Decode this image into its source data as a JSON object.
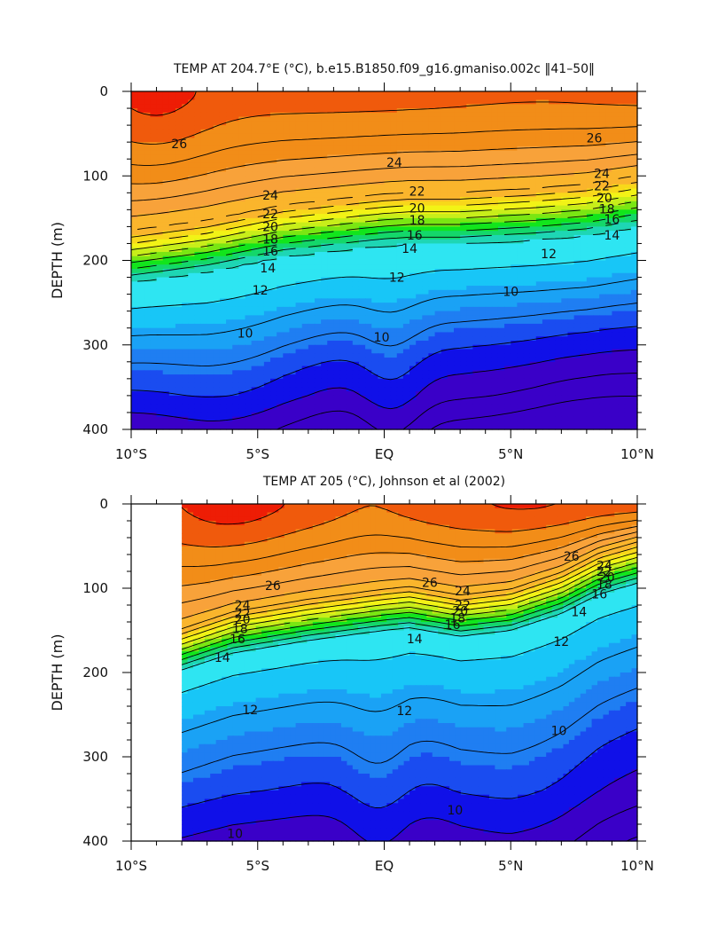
{
  "chart_data": [
    {
      "type": "contour",
      "title": "TEMP AT 204.7°E (°C), b.e15.B1850.f09_g16.gmaniso.002c ‖41–50‖",
      "xlabel": "",
      "ylabel": "DEPTH (m)",
      "xticks": [
        "10°S",
        "5°S",
        "EQ",
        "5°N",
        "10°N"
      ],
      "x_values": [
        -10,
        -5,
        0,
        5,
        10
      ],
      "xlim": [
        -10,
        10
      ],
      "yticks": [
        "0",
        "100",
        "200",
        "300",
        "400"
      ],
      "ylim": [
        0,
        400
      ],
      "y_inverted": true,
      "data_xlim": [
        -10,
        10
      ],
      "contour_interval": 1,
      "contour_labels": [
        {
          "text": "26",
          "x": -8.1,
          "y": 62
        },
        {
          "text": "26",
          "x": 8.3,
          "y": 55
        },
        {
          "text": "24",
          "x": 0.4,
          "y": 84
        },
        {
          "text": "24",
          "x": 8.6,
          "y": 97
        },
        {
          "text": "24",
          "x": -4.5,
          "y": 123
        },
        {
          "text": "22",
          "x": 8.6,
          "y": 112
        },
        {
          "text": "22",
          "x": 1.3,
          "y": 118
        },
        {
          "text": "22",
          "x": -4.5,
          "y": 145
        },
        {
          "text": "20",
          "x": 8.7,
          "y": 126
        },
        {
          "text": "20",
          "x": 1.3,
          "y": 138
        },
        {
          "text": "20",
          "x": -4.5,
          "y": 160
        },
        {
          "text": "18",
          "x": 8.8,
          "y": 139
        },
        {
          "text": "18",
          "x": 1.3,
          "y": 152
        },
        {
          "text": "18",
          "x": -4.5,
          "y": 175
        },
        {
          "text": "16",
          "x": 9.0,
          "y": 151
        },
        {
          "text": "16",
          "x": 1.2,
          "y": 170
        },
        {
          "text": "16",
          "x": -4.5,
          "y": 189
        },
        {
          "text": "14",
          "x": 9.0,
          "y": 170
        },
        {
          "text": "14",
          "x": 1.0,
          "y": 186
        },
        {
          "text": "14",
          "x": -4.6,
          "y": 209
        },
        {
          "text": "12",
          "x": 6.5,
          "y": 192
        },
        {
          "text": "12",
          "x": 0.5,
          "y": 220
        },
        {
          "text": "12",
          "x": -4.9,
          "y": 235
        },
        {
          "text": "10",
          "x": 5.0,
          "y": 237
        },
        {
          "text": "10",
          "x": -0.1,
          "y": 291
        },
        {
          "text": "10",
          "x": -5.5,
          "y": 286
        }
      ]
    },
    {
      "type": "contour",
      "title": "TEMP AT 205 (°C), Johnson et al (2002)",
      "xlabel": "",
      "ylabel": "DEPTH (m)",
      "xticks": [
        "10°S",
        "5°S",
        "EQ",
        "5°N",
        "10°N"
      ],
      "x_values": [
        -10,
        -5,
        0,
        5,
        10
      ],
      "xlim": [
        -10,
        10
      ],
      "yticks": [
        "0",
        "100",
        "200",
        "300",
        "400"
      ],
      "ylim": [
        0,
        400
      ],
      "y_inverted": true,
      "data_xlim": [
        -8,
        10
      ],
      "contour_interval": 1,
      "contour_labels": [
        {
          "text": "26",
          "x": -4.4,
          "y": 97
        },
        {
          "text": "26",
          "x": 1.8,
          "y": 93
        },
        {
          "text": "26",
          "x": 7.4,
          "y": 62
        },
        {
          "text": "24",
          "x": -5.6,
          "y": 120
        },
        {
          "text": "24",
          "x": 3.1,
          "y": 103
        },
        {
          "text": "24",
          "x": 8.7,
          "y": 73
        },
        {
          "text": "22",
          "x": -5.6,
          "y": 130
        },
        {
          "text": "22",
          "x": 3.1,
          "y": 120
        },
        {
          "text": "22",
          "x": 8.7,
          "y": 80
        },
        {
          "text": "20",
          "x": -5.6,
          "y": 137
        },
        {
          "text": "20",
          "x": 3.0,
          "y": 127
        },
        {
          "text": "20",
          "x": 8.8,
          "y": 87
        },
        {
          "text": "18",
          "x": -5.7,
          "y": 148
        },
        {
          "text": "18",
          "x": 2.9,
          "y": 135
        },
        {
          "text": "18",
          "x": 8.7,
          "y": 95
        },
        {
          "text": "16",
          "x": -5.8,
          "y": 160
        },
        {
          "text": "16",
          "x": 2.7,
          "y": 143
        },
        {
          "text": "16",
          "x": 8.5,
          "y": 107
        },
        {
          "text": "14",
          "x": -6.4,
          "y": 182
        },
        {
          "text": "14",
          "x": 1.2,
          "y": 160
        },
        {
          "text": "14",
          "x": 7.7,
          "y": 128
        },
        {
          "text": "12",
          "x": -5.3,
          "y": 244
        },
        {
          "text": "12",
          "x": 0.8,
          "y": 245
        },
        {
          "text": "12",
          "x": 7.0,
          "y": 163
        },
        {
          "text": "10",
          "x": 6.9,
          "y": 269
        },
        {
          "text": "10",
          "x": 2.8,
          "y": 363
        },
        {
          "text": "10",
          "x": -5.9,
          "y": 391
        }
      ]
    }
  ]
}
